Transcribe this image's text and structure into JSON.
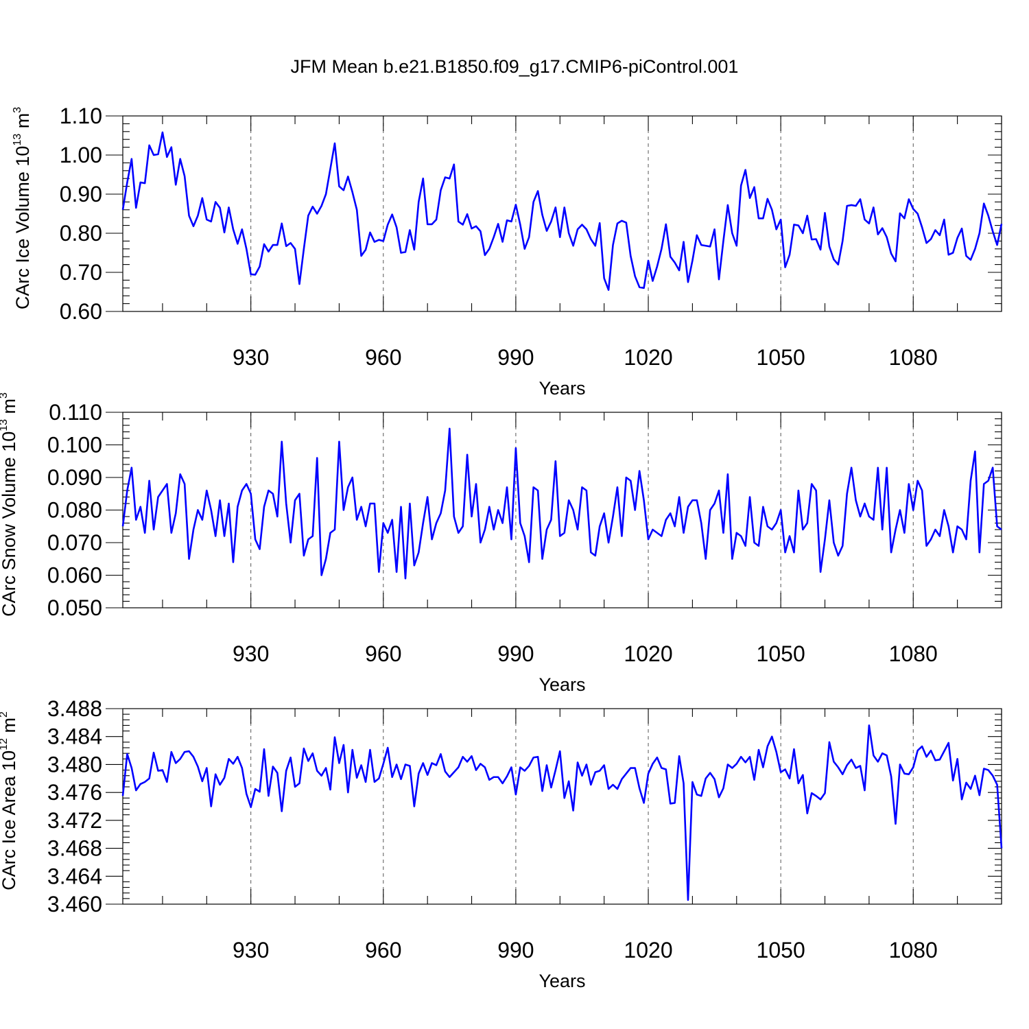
{
  "figure_title": "JFM Mean b.e21.B1850.f09_g17.CMIP6-piControl.001",
  "line_color": "#0000ff",
  "chart_data": [
    {
      "type": "line",
      "ylabel": "CArc Ice Volume 10",
      "ylabel_exp": "13",
      "ylabel_unit": " m",
      "ylabel_unit_exp": "3",
      "xlabel": "Years",
      "xlim": [
        901,
        1100
      ],
      "ylim": [
        0.6,
        1.1
      ],
      "yticks": [
        0.6,
        0.7,
        0.8,
        0.9,
        1.0,
        1.1
      ],
      "ytick_labels": [
        "0.60",
        "0.70",
        "0.80",
        "0.90",
        "1.00",
        "1.10"
      ],
      "xticks": [
        930,
        960,
        990,
        1020,
        1050,
        1080
      ],
      "xtick_labels": [
        "930",
        "960",
        "990",
        "1020",
        "1050",
        "1080"
      ],
      "x_start": 901,
      "values": [
        0.86,
        0.93,
        0.99,
        0.865,
        0.93,
        0.928,
        1.025,
        1.0,
        1.002,
        1.058,
        0.995,
        1.02,
        0.924,
        0.99,
        0.946,
        0.845,
        0.818,
        0.845,
        0.89,
        0.835,
        0.83,
        0.88,
        0.865,
        0.802,
        0.866,
        0.81,
        0.773,
        0.81,
        0.76,
        0.695,
        0.694,
        0.715,
        0.772,
        0.753,
        0.77,
        0.77,
        0.825,
        0.767,
        0.775,
        0.76,
        0.67,
        0.76,
        0.845,
        0.868,
        0.85,
        0.87,
        0.9,
        0.965,
        1.03,
        0.92,
        0.91,
        0.945,
        0.905,
        0.86,
        0.742,
        0.758,
        0.802,
        0.778,
        0.783,
        0.78,
        0.822,
        0.848,
        0.815,
        0.75,
        0.752,
        0.808,
        0.758,
        0.88,
        0.94,
        0.823,
        0.823,
        0.835,
        0.91,
        0.943,
        0.94,
        0.976,
        0.83,
        0.822,
        0.849,
        0.812,
        0.818,
        0.805,
        0.744,
        0.76,
        0.79,
        0.824,
        0.778,
        0.833,
        0.83,
        0.873,
        0.822,
        0.76,
        0.79,
        0.88,
        0.908,
        0.847,
        0.806,
        0.83,
        0.866,
        0.79,
        0.866,
        0.8,
        0.768,
        0.81,
        0.822,
        0.81,
        0.785,
        0.768,
        0.826,
        0.685,
        0.655,
        0.77,
        0.825,
        0.832,
        0.827,
        0.742,
        0.69,
        0.662,
        0.66,
        0.73,
        0.678,
        0.715,
        0.76,
        0.823,
        0.74,
        0.725,
        0.705,
        0.778,
        0.675,
        0.73,
        0.795,
        0.77,
        0.768,
        0.766,
        0.81,
        0.682,
        0.78,
        0.872,
        0.8,
        0.768,
        0.922,
        0.962,
        0.89,
        0.918,
        0.838,
        0.838,
        0.888,
        0.86,
        0.81,
        0.835,
        0.713,
        0.745,
        0.822,
        0.82,
        0.8,
        0.845,
        0.784,
        0.785,
        0.758,
        0.852,
        0.766,
        0.733,
        0.72,
        0.78,
        0.87,
        0.872,
        0.87,
        0.887,
        0.835,
        0.825,
        0.866,
        0.797,
        0.813,
        0.79,
        0.748,
        0.728,
        0.851,
        0.838,
        0.887,
        0.862,
        0.85,
        0.815,
        0.775,
        0.785,
        0.808,
        0.795,
        0.835,
        0.745,
        0.75,
        0.788,
        0.812,
        0.742,
        0.732,
        0.76,
        0.8,
        0.876,
        0.845,
        0.805,
        0.77,
        0.824
      ]
    },
    {
      "type": "line",
      "ylabel": "CArc Snow Volume 10",
      "ylabel_exp": "13",
      "ylabel_unit": " m",
      "ylabel_unit_exp": "3",
      "xlabel": "Years",
      "xlim": [
        901,
        1100
      ],
      "ylim": [
        0.05,
        0.11
      ],
      "yticks": [
        0.05,
        0.06,
        0.07,
        0.08,
        0.09,
        0.1,
        0.11
      ],
      "ytick_labels": [
        "0.050",
        "0.060",
        "0.070",
        "0.080",
        "0.090",
        "0.100",
        "0.110"
      ],
      "xticks": [
        930,
        960,
        990,
        1020,
        1050,
        1080
      ],
      "xtick_labels": [
        "930",
        "960",
        "990",
        "1020",
        "1050",
        "1080"
      ],
      "x_start": 901,
      "values": [
        0.075,
        0.086,
        0.093,
        0.077,
        0.081,
        0.073,
        0.089,
        0.074,
        0.084,
        0.086,
        0.088,
        0.073,
        0.079,
        0.091,
        0.088,
        0.065,
        0.074,
        0.08,
        0.077,
        0.086,
        0.08,
        0.072,
        0.083,
        0.072,
        0.082,
        0.064,
        0.081,
        0.086,
        0.088,
        0.085,
        0.071,
        0.068,
        0.081,
        0.086,
        0.085,
        0.078,
        0.101,
        0.082,
        0.07,
        0.083,
        0.085,
        0.066,
        0.071,
        0.072,
        0.096,
        0.06,
        0.065,
        0.073,
        0.074,
        0.101,
        0.08,
        0.087,
        0.09,
        0.077,
        0.081,
        0.075,
        0.082,
        0.082,
        0.061,
        0.076,
        0.073,
        0.077,
        0.061,
        0.081,
        0.059,
        0.082,
        0.063,
        0.067,
        0.076,
        0.084,
        0.071,
        0.076,
        0.079,
        0.086,
        0.105,
        0.078,
        0.073,
        0.075,
        0.097,
        0.078,
        0.088,
        0.07,
        0.074,
        0.081,
        0.074,
        0.08,
        0.076,
        0.087,
        0.071,
        0.099,
        0.076,
        0.072,
        0.064,
        0.087,
        0.086,
        0.065,
        0.074,
        0.077,
        0.095,
        0.072,
        0.073,
        0.083,
        0.08,
        0.074,
        0.087,
        0.086,
        0.067,
        0.066,
        0.075,
        0.079,
        0.07,
        0.078,
        0.087,
        0.072,
        0.09,
        0.089,
        0.08,
        0.092,
        0.083,
        0.071,
        0.074,
        0.073,
        0.072,
        0.077,
        0.079,
        0.075,
        0.084,
        0.073,
        0.081,
        0.083,
        0.083,
        0.076,
        0.065,
        0.08,
        0.082,
        0.086,
        0.073,
        0.091,
        0.065,
        0.073,
        0.072,
        0.069,
        0.084,
        0.07,
        0.069,
        0.081,
        0.075,
        0.074,
        0.076,
        0.08,
        0.067,
        0.072,
        0.067,
        0.086,
        0.074,
        0.076,
        0.088,
        0.086,
        0.061,
        0.071,
        0.083,
        0.07,
        0.066,
        0.069,
        0.085,
        0.093,
        0.083,
        0.078,
        0.082,
        0.078,
        0.077,
        0.093,
        0.074,
        0.093,
        0.067,
        0.074,
        0.08,
        0.073,
        0.088,
        0.08,
        0.089,
        0.086,
        0.069,
        0.071,
        0.074,
        0.072,
        0.08,
        0.075,
        0.067,
        0.075,
        0.074,
        0.071,
        0.089,
        0.098,
        0.067,
        0.088,
        0.089,
        0.093,
        0.075,
        0.074
      ]
    },
    {
      "type": "line",
      "ylabel": "CArc Ice Area 10",
      "ylabel_exp": "12",
      "ylabel_unit": " m",
      "ylabel_unit_exp": "2",
      "xlabel": "Years",
      "xlim": [
        901,
        1100
      ],
      "ylim": [
        3.46,
        3.488
      ],
      "yticks": [
        3.46,
        3.464,
        3.468,
        3.472,
        3.476,
        3.48,
        3.484,
        3.488
      ],
      "ytick_labels": [
        "3.460",
        "3.464",
        "3.468",
        "3.472",
        "3.476",
        "3.480",
        "3.484",
        "3.488"
      ],
      "xticks": [
        930,
        960,
        990,
        1020,
        1050,
        1080
      ],
      "xtick_labels": [
        "930",
        "960",
        "990",
        "1020",
        "1050",
        "1080"
      ],
      "x_start": 901,
      "values": [
        3.4755,
        3.4815,
        3.4795,
        3.4763,
        3.4772,
        3.4775,
        3.478,
        3.4817,
        3.4791,
        3.4792,
        3.4775,
        3.4818,
        3.4802,
        3.4808,
        3.4818,
        3.4819,
        3.4811,
        3.4797,
        3.4776,
        3.4795,
        3.474,
        3.4786,
        3.4771,
        3.4781,
        3.4808,
        3.4801,
        3.4811,
        3.4795,
        3.4758,
        3.4739,
        3.4765,
        3.4761,
        3.4822,
        3.4755,
        3.4797,
        3.4788,
        3.4733,
        3.4791,
        3.481,
        3.4768,
        3.4773,
        3.4823,
        3.4805,
        3.4816,
        3.4791,
        3.4784,
        3.4795,
        3.4764,
        3.4839,
        3.4802,
        3.4828,
        3.476,
        3.4821,
        3.4781,
        3.4799,
        3.4775,
        3.4821,
        3.4775,
        3.478,
        3.4801,
        3.4824,
        3.4782,
        3.48,
        3.4779,
        3.48,
        3.4798,
        3.474,
        3.4787,
        3.4802,
        3.4785,
        3.4802,
        3.4799,
        3.4815,
        3.479,
        3.4782,
        3.4789,
        3.4796,
        3.4811,
        3.4804,
        3.4812,
        3.4792,
        3.4801,
        3.4796,
        3.4778,
        3.4782,
        3.4782,
        3.4773,
        3.4783,
        3.4796,
        3.4757,
        3.4796,
        3.4791,
        3.4798,
        3.481,
        3.4811,
        3.4762,
        3.4799,
        3.4767,
        3.4792,
        3.4819,
        3.4752,
        3.4776,
        3.4734,
        3.4803,
        3.4784,
        3.48,
        3.4771,
        3.4789,
        3.4791,
        3.4799,
        3.4765,
        3.4771,
        3.4765,
        3.4779,
        3.4787,
        3.4795,
        3.4795,
        3.4766,
        3.4745,
        3.4787,
        3.4801,
        3.481,
        3.4795,
        3.4793,
        3.4744,
        3.4745,
        3.4812,
        3.4773,
        3.4606,
        3.4775,
        3.4757,
        3.4755,
        3.478,
        3.4788,
        3.4779,
        3.4753,
        3.4766,
        3.48,
        3.4795,
        3.4801,
        3.4811,
        3.4803,
        3.4811,
        3.4778,
        3.4821,
        3.4796,
        3.4826,
        3.484,
        3.4818,
        3.4789,
        3.4793,
        3.478,
        3.4822,
        3.4773,
        3.4785,
        3.473,
        3.4759,
        3.4755,
        3.475,
        3.4759,
        3.4832,
        3.4804,
        3.4796,
        3.4786,
        3.4799,
        3.4807,
        3.4795,
        3.4798,
        3.4763,
        3.4856,
        3.4813,
        3.4804,
        3.4816,
        3.4813,
        3.4783,
        3.4715,
        3.48,
        3.4787,
        3.4786,
        3.4796,
        3.482,
        3.4826,
        3.4811,
        3.482,
        3.4806,
        3.4807,
        3.4819,
        3.4831,
        3.4777,
        3.4808,
        3.475,
        3.4774,
        3.4765,
        3.4784,
        3.4756,
        3.4794,
        3.4792,
        3.4784,
        3.4771,
        3.468
      ]
    }
  ]
}
